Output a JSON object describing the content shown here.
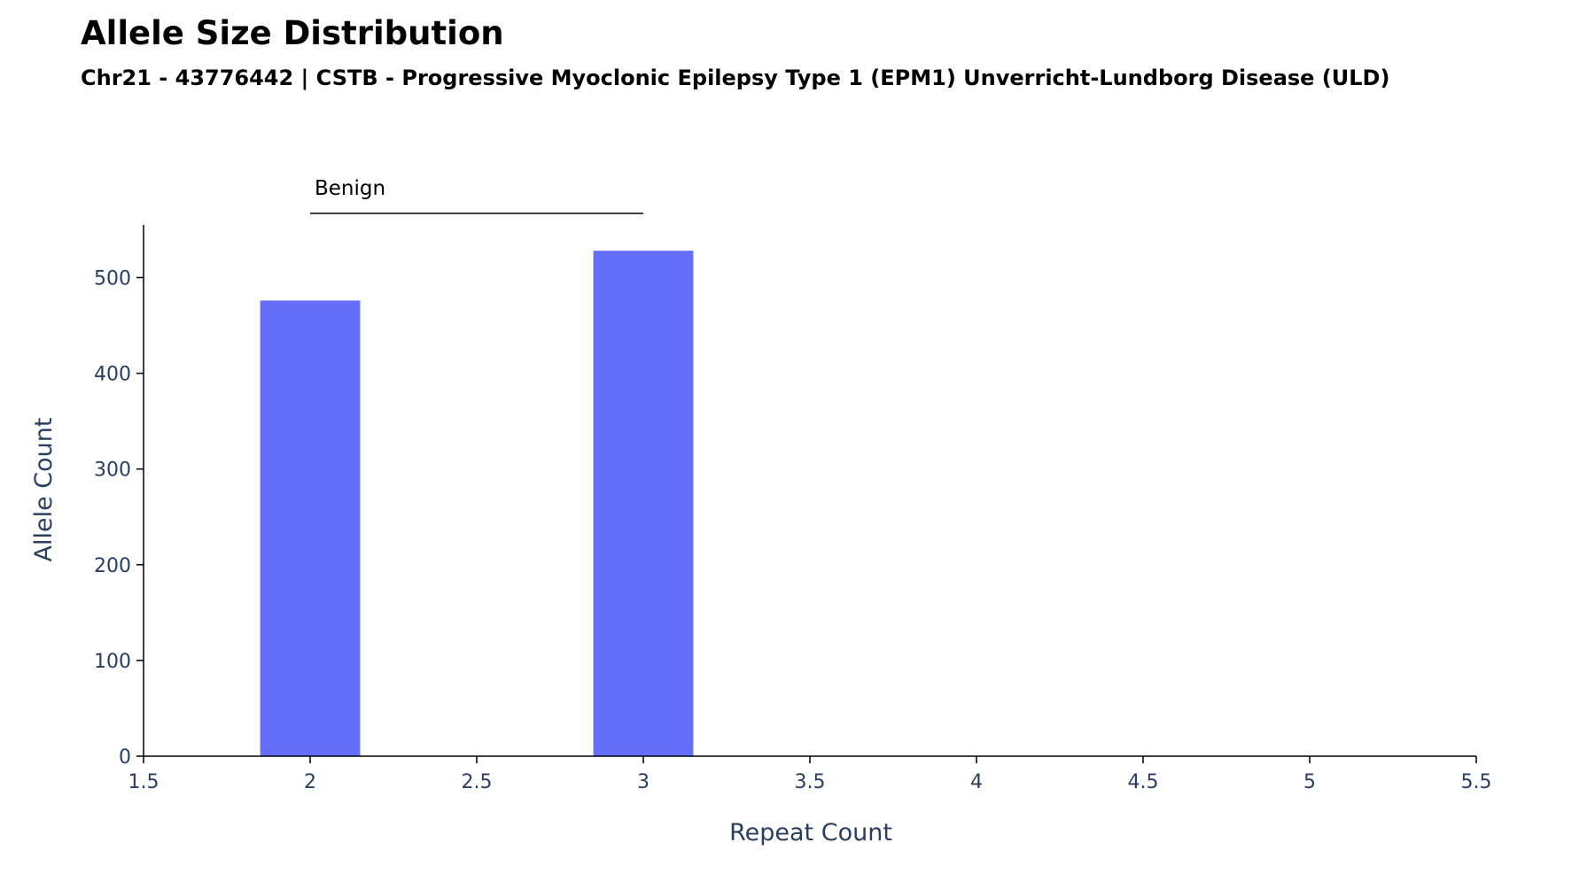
{
  "chart_data": {
    "type": "bar",
    "title": "Allele Size Distribution",
    "subtitle": "Chr21 - 43776442 | CSTB - Progressive Myoclonic Epilepsy Type 1 (EPM1) Unverricht-Lundborg Disease (ULD)",
    "xlabel": "Repeat Count",
    "ylabel": "Allele Count",
    "x": [
      2,
      3
    ],
    "values": [
      476,
      528
    ],
    "bar_width": 0.3,
    "bar_color": "#636efa",
    "xlim": [
      1.5,
      5.5
    ],
    "ylim": [
      0,
      555
    ],
    "x_ticks": [
      1.5,
      2,
      2.5,
      3,
      3.5,
      4,
      4.5,
      5,
      5.5
    ],
    "x_tick_labels": [
      "1.5",
      "2",
      "2.5",
      "3",
      "3.5",
      "4",
      "4.5",
      "5",
      "5.5"
    ],
    "y_ticks": [
      0,
      100,
      200,
      300,
      400,
      500
    ],
    "y_tick_labels": [
      "0",
      "100",
      "200",
      "300",
      "400",
      "500"
    ],
    "grid": false,
    "ranges": [
      {
        "label": "Benign",
        "x_start": 2,
        "x_end": 3
      }
    ]
  }
}
